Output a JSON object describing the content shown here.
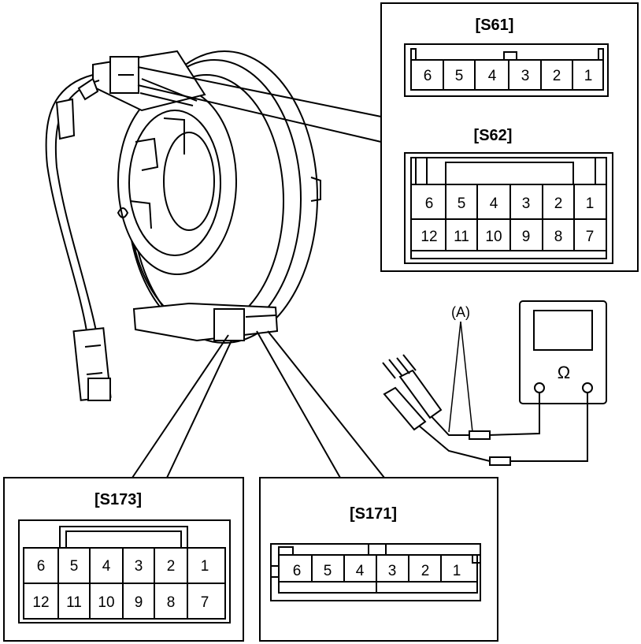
{
  "connectors": {
    "s61": {
      "label": "[S61]",
      "pins": [
        "6",
        "5",
        "4",
        "3",
        "2",
        "1"
      ]
    },
    "s62": {
      "label": "[S62]",
      "top": [
        "6",
        "5",
        "4",
        "3",
        "2",
        "1"
      ],
      "bottom": [
        "12",
        "11",
        "10",
        "9",
        "8",
        "7"
      ]
    },
    "s173": {
      "label": "[S173]",
      "top": [
        "6",
        "5",
        "4",
        "3",
        "2",
        "1"
      ],
      "bottom": [
        "12",
        "11",
        "10",
        "9",
        "8",
        "7"
      ]
    },
    "s171": {
      "label": "[S171]",
      "pins": [
        "6",
        "5",
        "4",
        "3",
        "2",
        "1"
      ]
    }
  },
  "meter": {
    "label": "Ω",
    "probe_label": "(A)"
  }
}
